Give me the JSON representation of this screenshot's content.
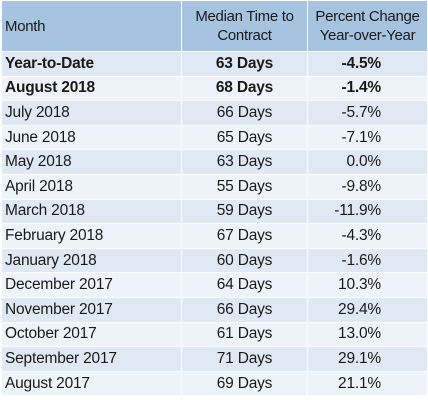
{
  "table": {
    "headers": {
      "month": "Month",
      "median_line1": "Median Time to",
      "median_line2": "Contract",
      "pct_line1": "Percent Change",
      "pct_line2": "Year-over-Year"
    },
    "rows": [
      {
        "month": "Year-to-Date",
        "days": "63 Days",
        "pct": "-4.5%",
        "bold": true
      },
      {
        "month": "August 2018",
        "days": "68 Days",
        "pct": "-1.4%",
        "bold": true
      },
      {
        "month": "July 2018",
        "days": "66 Days",
        "pct": "-5.7%",
        "bold": false
      },
      {
        "month": "June 2018",
        "days": "65 Days",
        "pct": "-7.1%",
        "bold": false
      },
      {
        "month": "May 2018",
        "days": "63 Days",
        "pct": "0.0%",
        "bold": false
      },
      {
        "month": "April 2018",
        "days": "55 Days",
        "pct": "-9.8%",
        "bold": false
      },
      {
        "month": "March 2018",
        "days": "59 Days",
        "pct": "-11.9%",
        "bold": false
      },
      {
        "month": "February 2018",
        "days": "67 Days",
        "pct": "-4.3%",
        "bold": false
      },
      {
        "month": "January 2018",
        "days": "60 Days",
        "pct": "-1.6%",
        "bold": false
      },
      {
        "month": "December 2017",
        "days": "64 Days",
        "pct": "10.3%",
        "bold": false
      },
      {
        "month": "November 2017",
        "days": "66 Days",
        "pct": "29.4%",
        "bold": false
      },
      {
        "month": "October 2017",
        "days": "61 Days",
        "pct": "13.0%",
        "bold": false
      },
      {
        "month": "September 2017",
        "days": "71 Days",
        "pct": "29.1%",
        "bold": false
      },
      {
        "month": "August 2017",
        "days": "69 Days",
        "pct": "21.1%",
        "bold": false
      }
    ]
  },
  "colors": {
    "header_bg": "#a6c4e0",
    "row_odd_bg": "#dfe8f3",
    "row_even_bg": "#eef3f9"
  }
}
